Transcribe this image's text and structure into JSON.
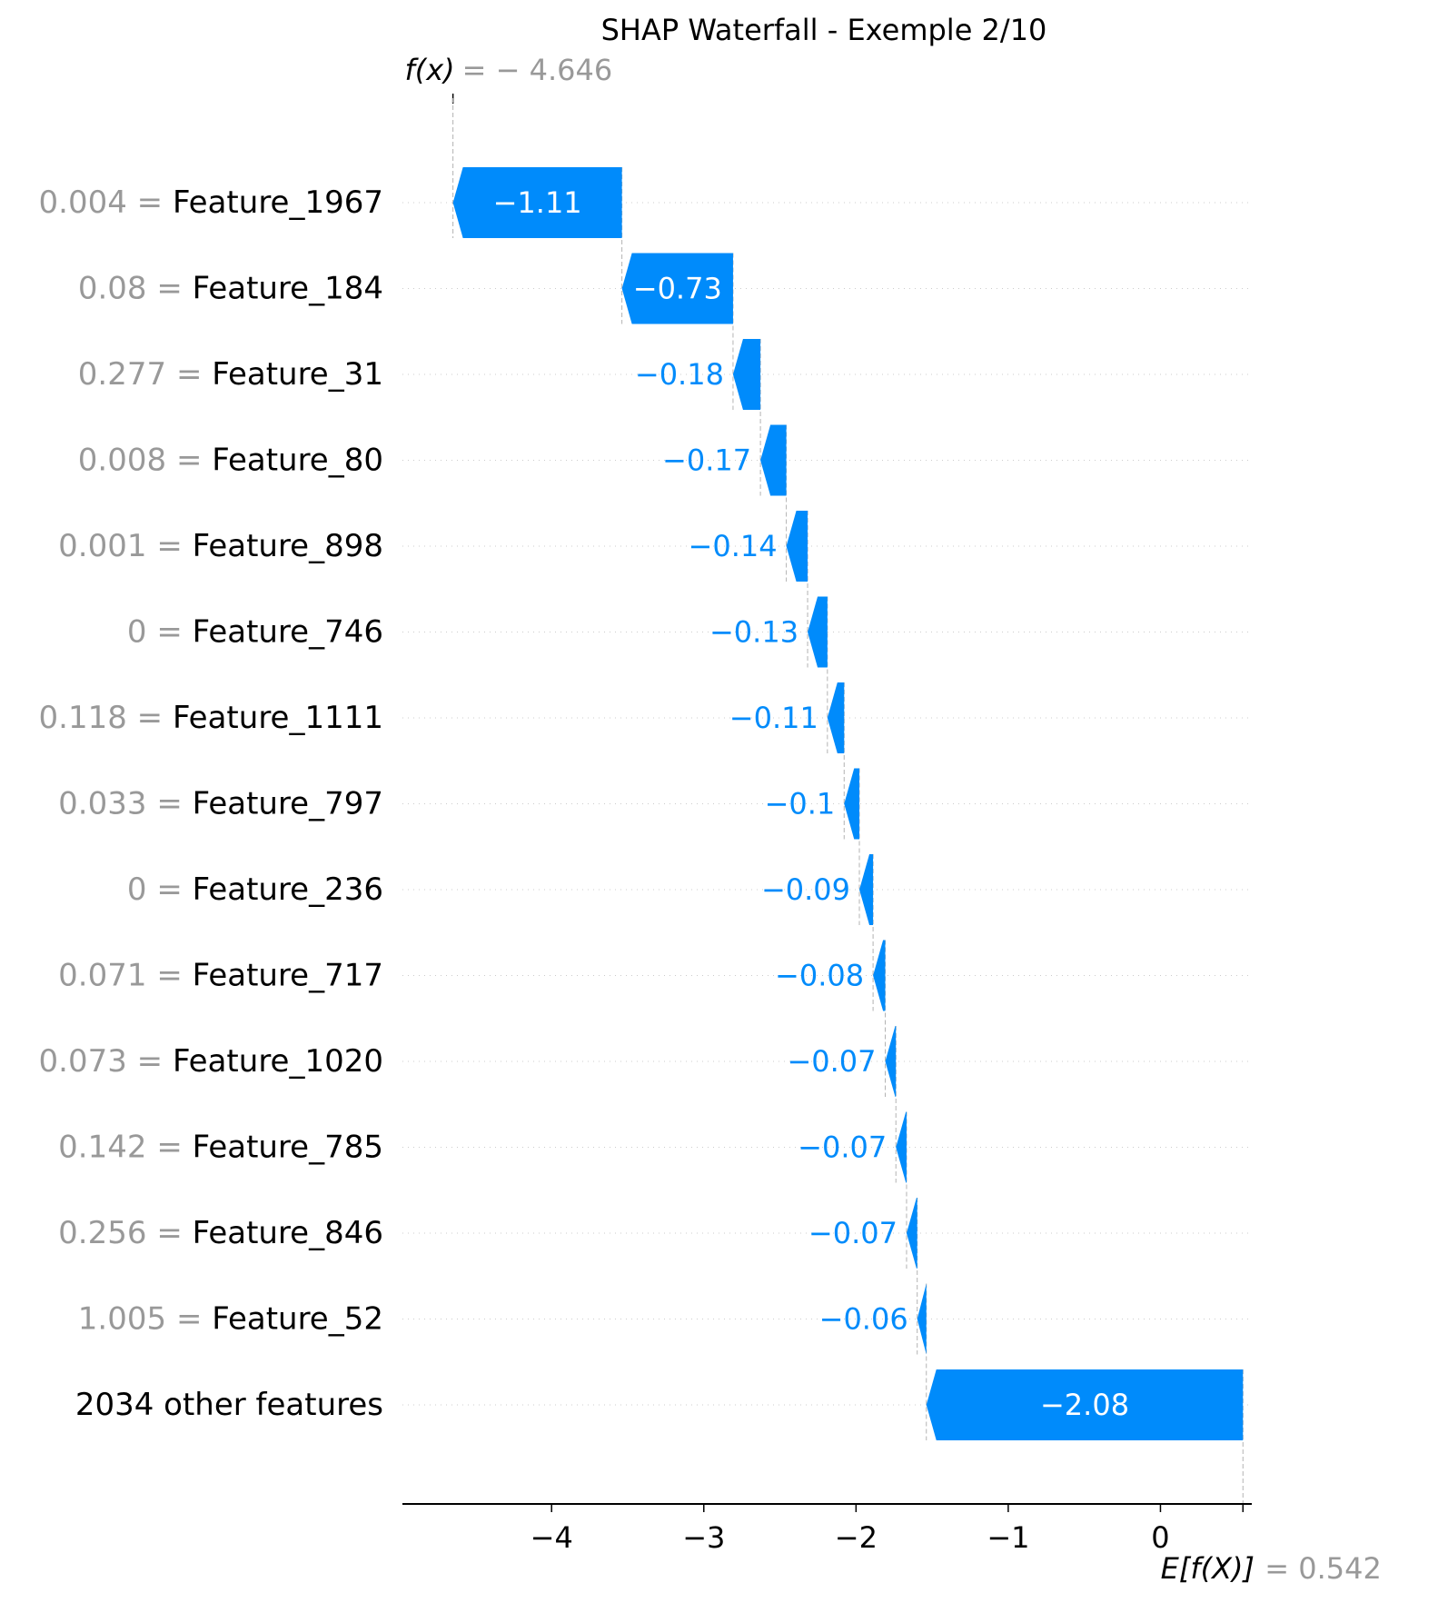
{
  "chart_data": {
    "type": "waterfall",
    "title": "SHAP Waterfall - Exemple 2/10",
    "fx_label": "f(x)",
    "fx_value": "− 4.646",
    "base_label": "E[f(X)]",
    "base_value": "0.542",
    "xlabel": "",
    "ylabel": "",
    "xlim": [
      -4.98,
      0.6
    ],
    "xticks": [
      {
        "value": -4,
        "label": "−4"
      },
      {
        "value": -3,
        "label": "−3"
      },
      {
        "value": -2,
        "label": "−2"
      },
      {
        "value": -1,
        "label": "−1"
      },
      {
        "value": 0,
        "label": "0"
      }
    ],
    "features": [
      {
        "value": "0.004",
        "name": "Feature_1967",
        "shap": -1.11,
        "label": "−1.11"
      },
      {
        "value": "0.08",
        "name": "Feature_184",
        "shap": -0.73,
        "label": "−0.73"
      },
      {
        "value": "0.277",
        "name": "Feature_31",
        "shap": -0.18,
        "label": "−0.18"
      },
      {
        "value": "0.008",
        "name": "Feature_80",
        "shap": -0.17,
        "label": "−0.17"
      },
      {
        "value": "0.001",
        "name": "Feature_898",
        "shap": -0.14,
        "label": "−0.14"
      },
      {
        "value": "0",
        "name": "Feature_746",
        "shap": -0.13,
        "label": "−0.13"
      },
      {
        "value": "0.118",
        "name": "Feature_1111",
        "shap": -0.11,
        "label": "−0.11"
      },
      {
        "value": "0.033",
        "name": "Feature_797",
        "shap": -0.1,
        "label": "−0.1"
      },
      {
        "value": "0",
        "name": "Feature_236",
        "shap": -0.09,
        "label": "−0.09"
      },
      {
        "value": "0.071",
        "name": "Feature_717",
        "shap": -0.08,
        "label": "−0.08"
      },
      {
        "value": "0.073",
        "name": "Feature_1020",
        "shap": -0.07,
        "label": "−0.07"
      },
      {
        "value": "0.142",
        "name": "Feature_785",
        "shap": -0.07,
        "label": "−0.07"
      },
      {
        "value": "0.256",
        "name": "Feature_846",
        "shap": -0.07,
        "label": "−0.07"
      },
      {
        "value": "1.005",
        "name": "Feature_52",
        "shap": -0.06,
        "label": "−0.06"
      },
      {
        "value": "",
        "name": "2034 other features",
        "shap": -2.08,
        "label": "−2.08"
      }
    ],
    "colors": {
      "negative": "#008bfb",
      "label_on_bar": "#ffffff",
      "value_text": "#999999",
      "name_text": "#000000",
      "grid": "#cccccc"
    }
  }
}
